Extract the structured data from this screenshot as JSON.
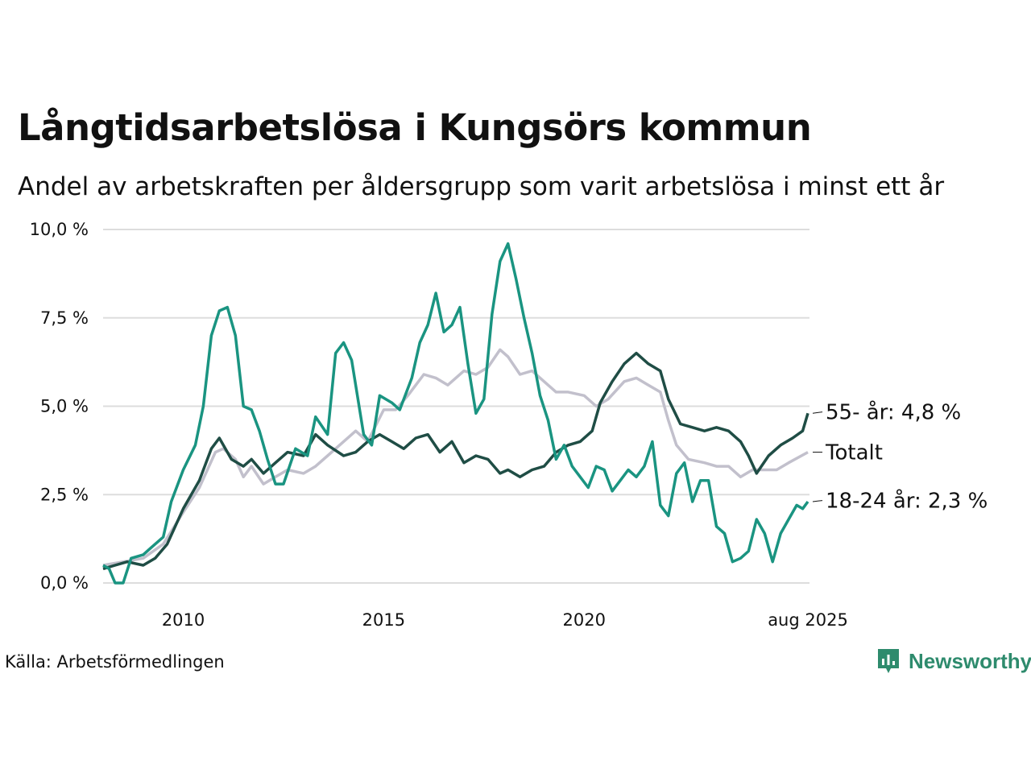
{
  "title": "Långtidsarbetslösa i Kungsörs kommun",
  "subtitle": "Andel av arbetskraften per åldersgrupp som varit arbetslösa i minst ett år",
  "source": "Källa: Arbetsförmedlingen",
  "brand": "Newsworthy",
  "colors": {
    "brand": "#2e8b6d",
    "grid": "#dddddd"
  },
  "chart_data": {
    "type": "line",
    "title": "Långtidsarbetslösa i Kungsörs kommun",
    "subtitle": "Andel av arbetskraften per åldersgrupp som varit arbetslösa i minst ett år",
    "xlim": [
      2008.0,
      2025.62
    ],
    "ylim": [
      0,
      10
    ],
    "grid": true,
    "y_ticks": [
      {
        "value": 0,
        "label": "0,0 %"
      },
      {
        "value": 2.5,
        "label": "2,5 %"
      },
      {
        "value": 5,
        "label": "5,0 %"
      },
      {
        "value": 7.5,
        "label": "7,5 %"
      },
      {
        "value": 10,
        "label": "10,0 %"
      }
    ],
    "x_ticks": [
      {
        "value": 2010,
        "label": "2010"
      },
      {
        "value": 2015,
        "label": "2015"
      },
      {
        "value": 2020,
        "label": "2020"
      },
      {
        "value": 2025.58,
        "label": "aug 2025"
      }
    ],
    "series": [
      {
        "name": "Totalt",
        "end_label": "Totalt",
        "color": "#c2c0cc",
        "points": [
          [
            2008.0,
            0.5
          ],
          [
            2008.5,
            0.6
          ],
          [
            2009.0,
            0.7
          ],
          [
            2009.5,
            1.1
          ],
          [
            2010.0,
            2.0
          ],
          [
            2010.4,
            2.7
          ],
          [
            2010.8,
            3.7
          ],
          [
            2011.0,
            3.8
          ],
          [
            2011.3,
            3.5
          ],
          [
            2011.5,
            3.0
          ],
          [
            2011.7,
            3.3
          ],
          [
            2012.0,
            2.8
          ],
          [
            2012.3,
            3.0
          ],
          [
            2012.6,
            3.2
          ],
          [
            2013.0,
            3.1
          ],
          [
            2013.3,
            3.3
          ],
          [
            2013.6,
            3.6
          ],
          [
            2014.0,
            4.0
          ],
          [
            2014.3,
            4.3
          ],
          [
            2014.6,
            4.0
          ],
          [
            2015.0,
            4.9
          ],
          [
            2015.3,
            4.9
          ],
          [
            2015.6,
            5.3
          ],
          [
            2016.0,
            5.9
          ],
          [
            2016.3,
            5.8
          ],
          [
            2016.6,
            5.6
          ],
          [
            2017.0,
            6.0
          ],
          [
            2017.3,
            5.9
          ],
          [
            2017.6,
            6.1
          ],
          [
            2017.9,
            6.6
          ],
          [
            2018.1,
            6.4
          ],
          [
            2018.4,
            5.9
          ],
          [
            2018.7,
            6.0
          ],
          [
            2019.0,
            5.7
          ],
          [
            2019.3,
            5.4
          ],
          [
            2019.6,
            5.4
          ],
          [
            2020.0,
            5.3
          ],
          [
            2020.3,
            5.0
          ],
          [
            2020.6,
            5.2
          ],
          [
            2021.0,
            5.7
          ],
          [
            2021.3,
            5.8
          ],
          [
            2021.6,
            5.6
          ],
          [
            2021.9,
            5.4
          ],
          [
            2022.1,
            4.6
          ],
          [
            2022.3,
            3.9
          ],
          [
            2022.6,
            3.5
          ],
          [
            2023.0,
            3.4
          ],
          [
            2023.3,
            3.3
          ],
          [
            2023.6,
            3.3
          ],
          [
            2023.9,
            3.0
          ],
          [
            2024.2,
            3.2
          ],
          [
            2024.5,
            3.2
          ],
          [
            2024.8,
            3.2
          ],
          [
            2025.1,
            3.4
          ],
          [
            2025.58,
            3.7
          ]
        ]
      },
      {
        "name": "55- år",
        "end_label": "55- år: 4,8 %",
        "color": "#1f4d45",
        "points": [
          [
            2008.0,
            0.4
          ],
          [
            2008.3,
            0.5
          ],
          [
            2008.6,
            0.6
          ],
          [
            2009.0,
            0.5
          ],
          [
            2009.3,
            0.7
          ],
          [
            2009.6,
            1.1
          ],
          [
            2010.0,
            2.1
          ],
          [
            2010.4,
            2.9
          ],
          [
            2010.7,
            3.8
          ],
          [
            2010.9,
            4.1
          ],
          [
            2011.2,
            3.5
          ],
          [
            2011.5,
            3.3
          ],
          [
            2011.7,
            3.5
          ],
          [
            2012.0,
            3.1
          ],
          [
            2012.3,
            3.4
          ],
          [
            2012.6,
            3.7
          ],
          [
            2013.0,
            3.6
          ],
          [
            2013.3,
            4.2
          ],
          [
            2013.6,
            3.9
          ],
          [
            2014.0,
            3.6
          ],
          [
            2014.3,
            3.7
          ],
          [
            2014.6,
            4.0
          ],
          [
            2014.9,
            4.2
          ],
          [
            2015.2,
            4.0
          ],
          [
            2015.5,
            3.8
          ],
          [
            2015.8,
            4.1
          ],
          [
            2016.1,
            4.2
          ],
          [
            2016.4,
            3.7
          ],
          [
            2016.7,
            4.0
          ],
          [
            2017.0,
            3.4
          ],
          [
            2017.3,
            3.6
          ],
          [
            2017.6,
            3.5
          ],
          [
            2017.9,
            3.1
          ],
          [
            2018.1,
            3.2
          ],
          [
            2018.4,
            3.0
          ],
          [
            2018.7,
            3.2
          ],
          [
            2019.0,
            3.3
          ],
          [
            2019.3,
            3.7
          ],
          [
            2019.6,
            3.9
          ],
          [
            2019.9,
            4.0
          ],
          [
            2020.2,
            4.3
          ],
          [
            2020.4,
            5.1
          ],
          [
            2020.7,
            5.7
          ],
          [
            2021.0,
            6.2
          ],
          [
            2021.3,
            6.5
          ],
          [
            2021.6,
            6.2
          ],
          [
            2021.9,
            6.0
          ],
          [
            2022.1,
            5.2
          ],
          [
            2022.4,
            4.5
          ],
          [
            2022.7,
            4.4
          ],
          [
            2023.0,
            4.3
          ],
          [
            2023.3,
            4.4
          ],
          [
            2023.6,
            4.3
          ],
          [
            2023.9,
            4.0
          ],
          [
            2024.1,
            3.6
          ],
          [
            2024.3,
            3.1
          ],
          [
            2024.6,
            3.6
          ],
          [
            2024.9,
            3.9
          ],
          [
            2025.2,
            4.1
          ],
          [
            2025.45,
            4.3
          ],
          [
            2025.58,
            4.8
          ]
        ]
      },
      {
        "name": "18-24 år",
        "end_label": "18-24 år: 2,3 %",
        "color": "#1a9481",
        "points": [
          [
            2008.0,
            0.5
          ],
          [
            2008.15,
            0.4
          ],
          [
            2008.3,
            0.0
          ],
          [
            2008.5,
            0.0
          ],
          [
            2008.7,
            0.7
          ],
          [
            2009.0,
            0.8
          ],
          [
            2009.2,
            1.0
          ],
          [
            2009.5,
            1.3
          ],
          [
            2009.7,
            2.3
          ],
          [
            2010.0,
            3.2
          ],
          [
            2010.3,
            3.9
          ],
          [
            2010.5,
            5.0
          ],
          [
            2010.7,
            7.0
          ],
          [
            2010.9,
            7.7
          ],
          [
            2011.1,
            7.8
          ],
          [
            2011.3,
            7.0
          ],
          [
            2011.5,
            5.0
          ],
          [
            2011.7,
            4.9
          ],
          [
            2011.9,
            4.3
          ],
          [
            2012.1,
            3.5
          ],
          [
            2012.3,
            2.8
          ],
          [
            2012.5,
            2.8
          ],
          [
            2012.8,
            3.8
          ],
          [
            2013.1,
            3.6
          ],
          [
            2013.3,
            4.7
          ],
          [
            2013.6,
            4.2
          ],
          [
            2013.8,
            6.5
          ],
          [
            2014.0,
            6.8
          ],
          [
            2014.2,
            6.3
          ],
          [
            2014.5,
            4.2
          ],
          [
            2014.7,
            3.9
          ],
          [
            2014.9,
            5.3
          ],
          [
            2015.2,
            5.1
          ],
          [
            2015.4,
            4.9
          ],
          [
            2015.7,
            5.8
          ],
          [
            2015.9,
            6.8
          ],
          [
            2016.1,
            7.3
          ],
          [
            2016.3,
            8.2
          ],
          [
            2016.5,
            7.1
          ],
          [
            2016.7,
            7.3
          ],
          [
            2016.9,
            7.8
          ],
          [
            2017.1,
            6.2
          ],
          [
            2017.3,
            4.8
          ],
          [
            2017.5,
            5.2
          ],
          [
            2017.7,
            7.6
          ],
          [
            2017.9,
            9.1
          ],
          [
            2018.1,
            9.6
          ],
          [
            2018.3,
            8.6
          ],
          [
            2018.5,
            7.5
          ],
          [
            2018.7,
            6.5
          ],
          [
            2018.9,
            5.3
          ],
          [
            2019.1,
            4.6
          ],
          [
            2019.3,
            3.5
          ],
          [
            2019.5,
            3.9
          ],
          [
            2019.7,
            3.3
          ],
          [
            2019.9,
            3.0
          ],
          [
            2020.1,
            2.7
          ],
          [
            2020.3,
            3.3
          ],
          [
            2020.5,
            3.2
          ],
          [
            2020.7,
            2.6
          ],
          [
            2020.9,
            2.9
          ],
          [
            2021.1,
            3.2
          ],
          [
            2021.3,
            3.0
          ],
          [
            2021.5,
            3.3
          ],
          [
            2021.7,
            4.0
          ],
          [
            2021.9,
            2.2
          ],
          [
            2022.1,
            1.9
          ],
          [
            2022.3,
            3.1
          ],
          [
            2022.5,
            3.4
          ],
          [
            2022.7,
            2.3
          ],
          [
            2022.9,
            2.9
          ],
          [
            2023.1,
            2.9
          ],
          [
            2023.3,
            1.6
          ],
          [
            2023.5,
            1.4
          ],
          [
            2023.7,
            0.6
          ],
          [
            2023.9,
            0.7
          ],
          [
            2024.1,
            0.9
          ],
          [
            2024.3,
            1.8
          ],
          [
            2024.5,
            1.4
          ],
          [
            2024.7,
            0.6
          ],
          [
            2024.9,
            1.4
          ],
          [
            2025.1,
            1.8
          ],
          [
            2025.3,
            2.2
          ],
          [
            2025.45,
            2.1
          ],
          [
            2025.58,
            2.3
          ]
        ]
      }
    ]
  }
}
